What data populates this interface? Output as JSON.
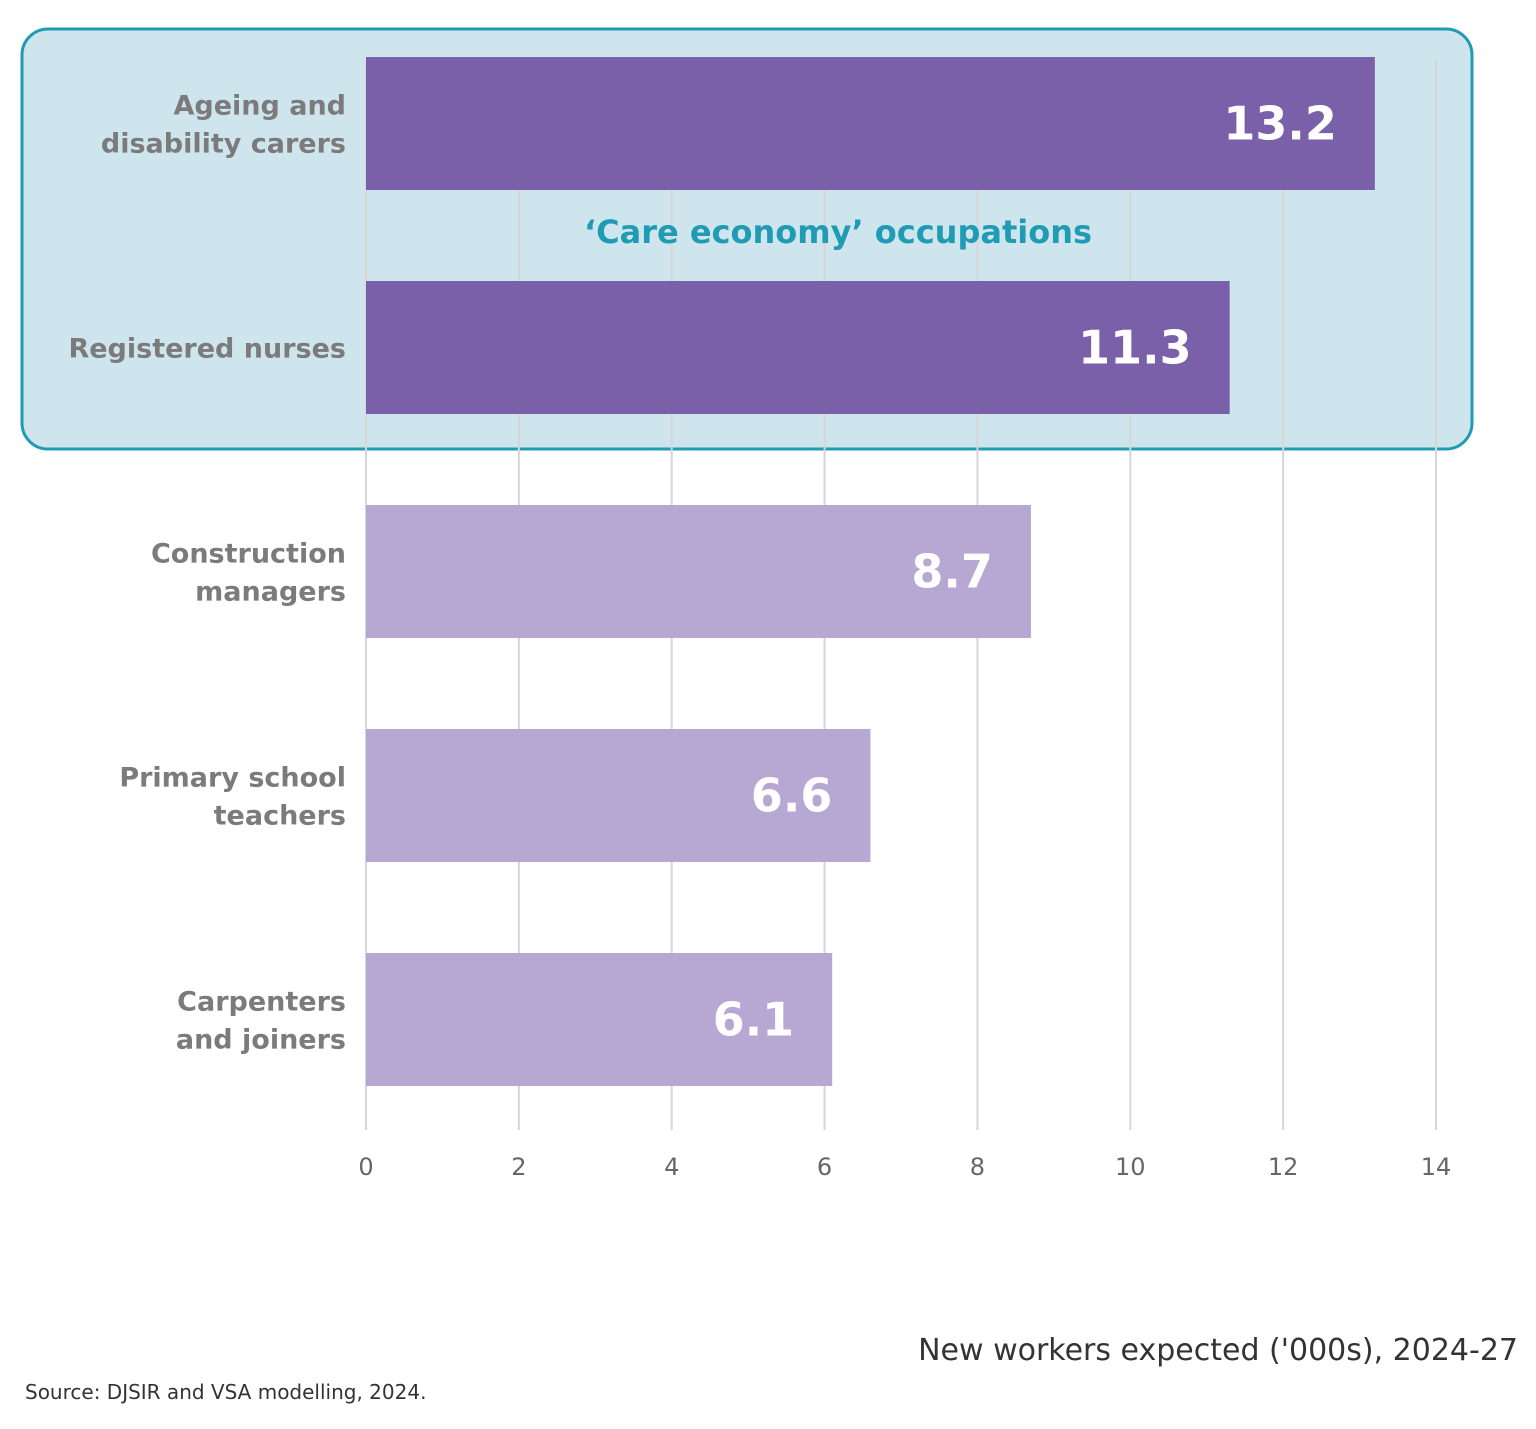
{
  "chart_data": {
    "type": "bar",
    "orientation": "horizontal",
    "categories": [
      [
        "Ageing and",
        "disability carers"
      ],
      [
        "Registered nurses"
      ],
      [
        "Construction",
        "managers"
      ],
      [
        "Primary school",
        "teachers"
      ],
      [
        "Carpenters",
        "and joiners"
      ]
    ],
    "values": [
      13.2,
      11.3,
      8.7,
      6.6,
      6.1
    ],
    "value_labels": [
      "13.2",
      "11.3",
      "8.7",
      "6.6",
      "6.1"
    ],
    "bar_colors": [
      "#7a60a8",
      "#7a60a8",
      "#b7a7d3",
      "#b7a7d3",
      "#b7a7d3"
    ],
    "xlim": [
      0,
      14
    ],
    "xticks": [
      0,
      2,
      4,
      6,
      8,
      10,
      12,
      14
    ],
    "xlabel": "New workers expected ('000s), 2024-27",
    "grid": "vertical",
    "highlight_group": {
      "label": "‘Care economy’ occupations",
      "categories": [
        0,
        1
      ],
      "fill_color": "#cfe5ee",
      "border_color": "#1f9bb3"
    },
    "source": "Source: DJSIR and VSA modelling, 2024."
  }
}
